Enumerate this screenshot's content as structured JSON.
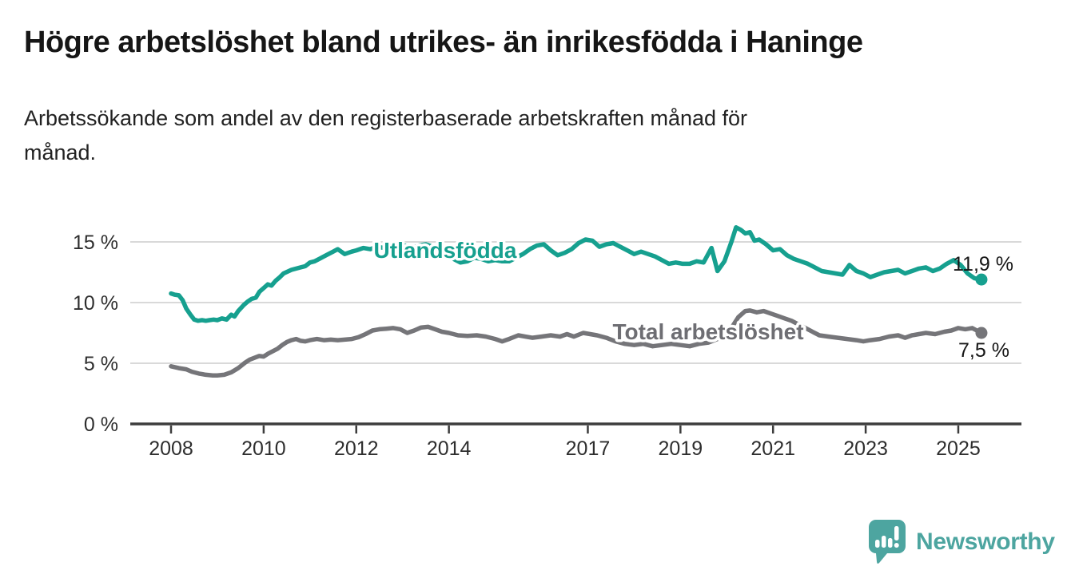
{
  "header": {
    "title": "Högre arbetslöshet bland utrikes- än inrikesfödda i Haninge",
    "subtitle_line1": "Arbetssökande som andel av den registerbaserade arbetskraften månad för",
    "subtitle_line2": "månad."
  },
  "chart_data": {
    "type": "line",
    "title": "Högre arbetslöshet bland utrikes- än inrikesfödda i Haninge",
    "subtitle": "Arbetssökande som andel av den registerbaserade arbetskraften månad för månad.",
    "unit": "%",
    "grid": "horizontal-on",
    "legend_position": "inline-labels",
    "x_axis": {
      "range": [
        2007.1,
        2026.4
      ],
      "tick_years": [
        2008,
        2010,
        2012,
        2014,
        2017,
        2019,
        2021,
        2023,
        2025
      ],
      "tick_labels": [
        "2008",
        "2010",
        "2012",
        "2014",
        "2017",
        "2019",
        "2021",
        "2023",
        "2025"
      ]
    },
    "y_axis": {
      "range": [
        0,
        16.6
      ],
      "tick_values": [
        0,
        5,
        10,
        15
      ],
      "tick_labels": [
        "0 %",
        "5 %",
        "10 %",
        "15 %"
      ]
    },
    "colors": {
      "gridline": "#d9d9d9",
      "axis": "#3d3d3d",
      "end_label_text": "#161616"
    },
    "series": [
      {
        "name": "Utlandsfödda",
        "color": "#16a08f",
        "label_color": "#16a08f",
        "end_value": 11.9,
        "end_label": "11,9 %",
        "points": [
          [
            2008.0,
            10.75
          ],
          [
            2008.08,
            10.65
          ],
          [
            2008.17,
            10.6
          ],
          [
            2008.25,
            10.2
          ],
          [
            2008.33,
            9.5
          ],
          [
            2008.42,
            9.0
          ],
          [
            2008.5,
            8.6
          ],
          [
            2008.58,
            8.5
          ],
          [
            2008.67,
            8.55
          ],
          [
            2008.75,
            8.5
          ],
          [
            2008.83,
            8.55
          ],
          [
            2008.92,
            8.6
          ],
          [
            2009.0,
            8.55
          ],
          [
            2009.1,
            8.7
          ],
          [
            2009.2,
            8.6
          ],
          [
            2009.3,
            9.0
          ],
          [
            2009.37,
            8.85
          ],
          [
            2009.45,
            9.3
          ],
          [
            2009.57,
            9.8
          ],
          [
            2009.66,
            10.1
          ],
          [
            2009.74,
            10.3
          ],
          [
            2009.83,
            10.4
          ],
          [
            2009.91,
            10.9
          ],
          [
            2010.0,
            11.2
          ],
          [
            2010.09,
            11.5
          ],
          [
            2010.17,
            11.4
          ],
          [
            2010.26,
            11.8
          ],
          [
            2010.35,
            12.1
          ],
          [
            2010.43,
            12.4
          ],
          [
            2010.6,
            12.7
          ],
          [
            2010.8,
            12.9
          ],
          [
            2010.9,
            13.0
          ],
          [
            2011.0,
            13.3
          ],
          [
            2011.1,
            13.4
          ],
          [
            2011.2,
            13.6
          ],
          [
            2011.35,
            13.9
          ],
          [
            2011.5,
            14.2
          ],
          [
            2011.6,
            14.4
          ],
          [
            2011.75,
            14.0
          ],
          [
            2011.9,
            14.2
          ],
          [
            2012.0,
            14.3
          ],
          [
            2012.15,
            14.5
          ],
          [
            2012.3,
            14.4
          ],
          [
            2012.45,
            14.6
          ],
          [
            2012.6,
            14.5
          ],
          [
            2012.75,
            14.7
          ],
          [
            2012.9,
            14.6
          ],
          [
            2013.05,
            14.7
          ],
          [
            2013.2,
            14.5
          ],
          [
            2013.35,
            14.7
          ],
          [
            2013.5,
            14.8
          ],
          [
            2013.65,
            14.6
          ],
          [
            2013.8,
            14.4
          ],
          [
            2013.95,
            14.0
          ],
          [
            2014.1,
            13.6
          ],
          [
            2014.25,
            13.3
          ],
          [
            2014.4,
            13.4
          ],
          [
            2014.55,
            13.7
          ],
          [
            2014.7,
            13.6
          ],
          [
            2014.85,
            13.4
          ],
          [
            2015.0,
            13.5
          ],
          [
            2015.15,
            13.4
          ],
          [
            2015.3,
            13.4
          ],
          [
            2015.45,
            13.7
          ],
          [
            2015.6,
            14.0
          ],
          [
            2015.75,
            14.4
          ],
          [
            2015.9,
            14.7
          ],
          [
            2016.05,
            14.8
          ],
          [
            2016.2,
            14.3
          ],
          [
            2016.35,
            13.9
          ],
          [
            2016.5,
            14.1
          ],
          [
            2016.65,
            14.4
          ],
          [
            2016.8,
            14.9
          ],
          [
            2016.95,
            15.2
          ],
          [
            2017.1,
            15.1
          ],
          [
            2017.25,
            14.6
          ],
          [
            2017.4,
            14.8
          ],
          [
            2017.55,
            14.9
          ],
          [
            2017.7,
            14.6
          ],
          [
            2017.85,
            14.3
          ],
          [
            2018.0,
            14.0
          ],
          [
            2018.15,
            14.2
          ],
          [
            2018.3,
            14.0
          ],
          [
            2018.45,
            13.8
          ],
          [
            2018.6,
            13.5
          ],
          [
            2018.75,
            13.2
          ],
          [
            2018.9,
            13.3
          ],
          [
            2019.05,
            13.2
          ],
          [
            2019.2,
            13.2
          ],
          [
            2019.35,
            13.4
          ],
          [
            2019.5,
            13.3
          ],
          [
            2019.67,
            14.5
          ],
          [
            2019.8,
            12.6
          ],
          [
            2019.95,
            13.4
          ],
          [
            2020.1,
            15.0
          ],
          [
            2020.2,
            16.2
          ],
          [
            2020.3,
            16.0
          ],
          [
            2020.4,
            15.7
          ],
          [
            2020.5,
            15.8
          ],
          [
            2020.6,
            15.1
          ],
          [
            2020.7,
            15.2
          ],
          [
            2020.85,
            14.8
          ],
          [
            2021.0,
            14.3
          ],
          [
            2021.15,
            14.4
          ],
          [
            2021.3,
            13.9
          ],
          [
            2021.45,
            13.6
          ],
          [
            2021.6,
            13.4
          ],
          [
            2021.75,
            13.2
          ],
          [
            2021.9,
            12.9
          ],
          [
            2022.05,
            12.6
          ],
          [
            2022.2,
            12.5
          ],
          [
            2022.35,
            12.4
          ],
          [
            2022.5,
            12.3
          ],
          [
            2022.65,
            13.1
          ],
          [
            2022.8,
            12.6
          ],
          [
            2022.95,
            12.4
          ],
          [
            2023.1,
            12.1
          ],
          [
            2023.25,
            12.3
          ],
          [
            2023.4,
            12.5
          ],
          [
            2023.55,
            12.6
          ],
          [
            2023.7,
            12.7
          ],
          [
            2023.85,
            12.4
          ],
          [
            2024.0,
            12.6
          ],
          [
            2024.15,
            12.8
          ],
          [
            2024.3,
            12.9
          ],
          [
            2024.45,
            12.6
          ],
          [
            2024.6,
            12.8
          ],
          [
            2024.75,
            13.2
          ],
          [
            2024.9,
            13.5
          ],
          [
            2025.05,
            13.1
          ],
          [
            2025.2,
            12.4
          ],
          [
            2025.35,
            12.0
          ],
          [
            2025.5,
            11.9
          ]
        ]
      },
      {
        "name": "Total arbetslöshet",
        "color": "#757579",
        "label_color": "#6e6e73",
        "end_value": 7.5,
        "end_label": "7,5 %",
        "points": [
          [
            2008.0,
            4.75
          ],
          [
            2008.17,
            4.6
          ],
          [
            2008.33,
            4.5
          ],
          [
            2008.45,
            4.3
          ],
          [
            2008.6,
            4.15
          ],
          [
            2008.75,
            4.05
          ],
          [
            2008.9,
            4.0
          ],
          [
            2009.0,
            4.0
          ],
          [
            2009.15,
            4.05
          ],
          [
            2009.3,
            4.25
          ],
          [
            2009.45,
            4.6
          ],
          [
            2009.6,
            5.05
          ],
          [
            2009.7,
            5.3
          ],
          [
            2009.8,
            5.45
          ],
          [
            2009.9,
            5.6
          ],
          [
            2010.0,
            5.55
          ],
          [
            2010.1,
            5.8
          ],
          [
            2010.2,
            6.0
          ],
          [
            2010.3,
            6.2
          ],
          [
            2010.4,
            6.5
          ],
          [
            2010.5,
            6.75
          ],
          [
            2010.6,
            6.9
          ],
          [
            2010.7,
            7.0
          ],
          [
            2010.8,
            6.85
          ],
          [
            2010.9,
            6.8
          ],
          [
            2011.0,
            6.9
          ],
          [
            2011.15,
            7.0
          ],
          [
            2011.3,
            6.9
          ],
          [
            2011.45,
            6.95
          ],
          [
            2011.6,
            6.9
          ],
          [
            2011.75,
            6.95
          ],
          [
            2011.9,
            7.0
          ],
          [
            2012.05,
            7.15
          ],
          [
            2012.2,
            7.4
          ],
          [
            2012.35,
            7.7
          ],
          [
            2012.5,
            7.8
          ],
          [
            2012.65,
            7.85
          ],
          [
            2012.8,
            7.9
          ],
          [
            2012.95,
            7.8
          ],
          [
            2013.1,
            7.5
          ],
          [
            2013.25,
            7.7
          ],
          [
            2013.4,
            7.95
          ],
          [
            2013.55,
            8.0
          ],
          [
            2013.7,
            7.8
          ],
          [
            2013.85,
            7.6
          ],
          [
            2014.0,
            7.5
          ],
          [
            2014.2,
            7.3
          ],
          [
            2014.4,
            7.25
          ],
          [
            2014.6,
            7.3
          ],
          [
            2014.8,
            7.2
          ],
          [
            2015.0,
            7.0
          ],
          [
            2015.15,
            6.8
          ],
          [
            2015.3,
            7.0
          ],
          [
            2015.5,
            7.3
          ],
          [
            2015.65,
            7.2
          ],
          [
            2015.8,
            7.1
          ],
          [
            2016.0,
            7.2
          ],
          [
            2016.2,
            7.3
          ],
          [
            2016.4,
            7.2
          ],
          [
            2016.55,
            7.4
          ],
          [
            2016.7,
            7.2
          ],
          [
            2016.9,
            7.5
          ],
          [
            2017.05,
            7.4
          ],
          [
            2017.2,
            7.3
          ],
          [
            2017.4,
            7.1
          ],
          [
            2017.6,
            6.8
          ],
          [
            2017.8,
            6.6
          ],
          [
            2018.0,
            6.5
          ],
          [
            2018.2,
            6.6
          ],
          [
            2018.4,
            6.4
          ],
          [
            2018.6,
            6.5
          ],
          [
            2018.8,
            6.6
          ],
          [
            2019.0,
            6.5
          ],
          [
            2019.2,
            6.4
          ],
          [
            2019.4,
            6.6
          ],
          [
            2019.6,
            6.7
          ],
          [
            2019.8,
            7.0
          ],
          [
            2020.0,
            7.3
          ],
          [
            2020.1,
            7.9
          ],
          [
            2020.25,
            8.8
          ],
          [
            2020.4,
            9.3
          ],
          [
            2020.5,
            9.35
          ],
          [
            2020.65,
            9.2
          ],
          [
            2020.8,
            9.3
          ],
          [
            2020.95,
            9.1
          ],
          [
            2021.1,
            8.9
          ],
          [
            2021.25,
            8.7
          ],
          [
            2021.4,
            8.5
          ],
          [
            2021.55,
            8.2
          ],
          [
            2021.7,
            7.9
          ],
          [
            2021.85,
            7.6
          ],
          [
            2022.0,
            7.3
          ],
          [
            2022.2,
            7.2
          ],
          [
            2022.4,
            7.1
          ],
          [
            2022.6,
            7.0
          ],
          [
            2022.8,
            6.9
          ],
          [
            2022.95,
            6.8
          ],
          [
            2023.1,
            6.9
          ],
          [
            2023.3,
            7.0
          ],
          [
            2023.5,
            7.2
          ],
          [
            2023.7,
            7.3
          ],
          [
            2023.85,
            7.1
          ],
          [
            2024.0,
            7.3
          ],
          [
            2024.15,
            7.4
          ],
          [
            2024.3,
            7.5
          ],
          [
            2024.5,
            7.4
          ],
          [
            2024.7,
            7.6
          ],
          [
            2024.85,
            7.7
          ],
          [
            2025.0,
            7.9
          ],
          [
            2025.15,
            7.8
          ],
          [
            2025.3,
            7.9
          ],
          [
            2025.4,
            7.7
          ],
          [
            2025.5,
            7.5
          ]
        ]
      }
    ]
  },
  "footer": {
    "brand": "Newsworthy",
    "brand_color": "#4da5a0",
    "logo_icon": "speech-bubble-bar-chart-icon"
  }
}
